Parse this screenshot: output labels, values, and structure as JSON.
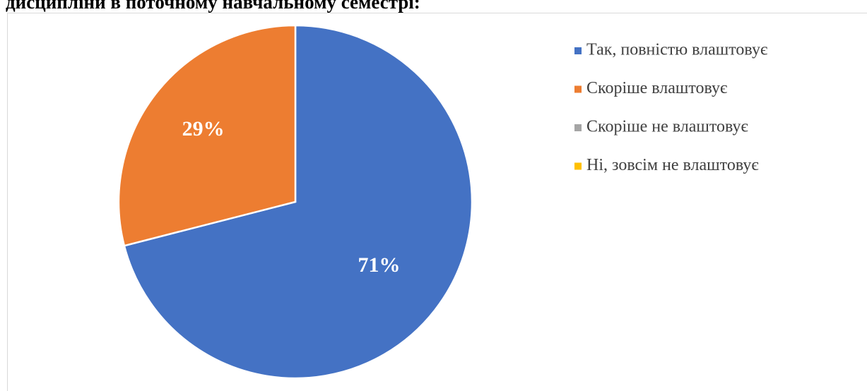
{
  "chart_data": {
    "type": "pie",
    "title": "дисципліни в поточному навчальному семестрі:",
    "categories": [
      "Так, повністю влаштовує",
      "Скоріше влаштовує",
      "Скоріше не влаштовує",
      "Ні, зовсім не влаштовує"
    ],
    "values": [
      71,
      29,
      0,
      0
    ],
    "value_labels": [
      "71%",
      "29%",
      null,
      null
    ],
    "colors": [
      "#4472c4",
      "#ed7d31",
      "#a5a5a5",
      "#ffc000"
    ],
    "legend": "right"
  }
}
